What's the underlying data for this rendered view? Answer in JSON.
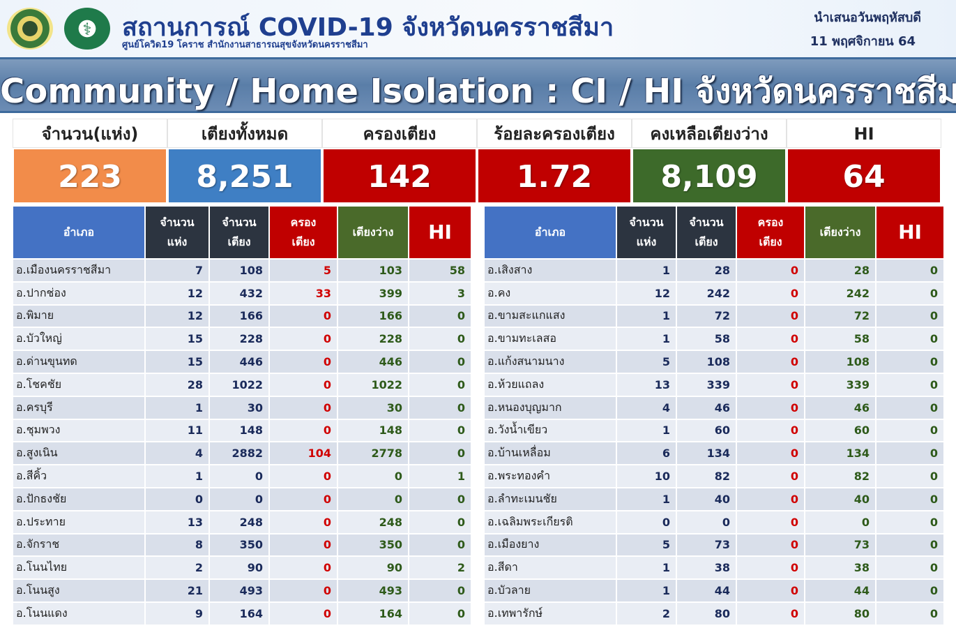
{
  "header": {
    "title": "สถานการณ์ COVID-19 จังหวัดนครราชสีมา",
    "subtitle": "ศูนย์โควิด19 โคราช สำนักงานสาธารณสุขจังหวัดนครราชสีมา",
    "date_line1": "นำเสนอวันพฤหัสบดี",
    "date_line2": "11 พฤศจิกายน 64",
    "logo2_symbol": "⚕"
  },
  "banner": "Community / Home Isolation : CI / HI จังหวัดนครราชสีมา",
  "summary": [
    {
      "label": "จำนวน(แห่ง)",
      "value": "223",
      "color": "#f28c4a"
    },
    {
      "label": "เตียงทั้งหมด",
      "value": "8,251",
      "color": "#3f7fc4"
    },
    {
      "label": "ครองเตียง",
      "value": "142",
      "color": "#c00000"
    },
    {
      "label": "ร้อยละครองเตียง",
      "value": "1.72",
      "color": "#c00000"
    },
    {
      "label": "คงเหลือเตียงว่าง",
      "value": "8,109",
      "color": "#3d6a2a"
    },
    {
      "label": "HI",
      "value": "64",
      "color": "#c00000"
    }
  ],
  "table_headers": {
    "district": "อำเภอ",
    "count_line1": "จำนวน",
    "count_line2": "แห่ง",
    "beds_line1": "จำนวน",
    "beds_line2": "เตียง",
    "occ_line1": "ครอง",
    "occ_line2": "เตียง",
    "available": "เตียงว่าง",
    "hi": "HI"
  },
  "left_rows": [
    [
      "อ.เมืองนครราชสีมา",
      "7",
      "108",
      "5",
      "103",
      "58"
    ],
    [
      "อ.ปากช่อง",
      "12",
      "432",
      "33",
      "399",
      "3"
    ],
    [
      "อ.พิมาย",
      "12",
      "166",
      "0",
      "166",
      "0"
    ],
    [
      "อ.บัวใหญ่",
      "15",
      "228",
      "0",
      "228",
      "0"
    ],
    [
      "อ.ด่านขุนทด",
      "15",
      "446",
      "0",
      "446",
      "0"
    ],
    [
      "อ.โชคชัย",
      "28",
      "1022",
      "0",
      "1022",
      "0"
    ],
    [
      "อ.ครบุรี",
      "1",
      "30",
      "0",
      "30",
      "0"
    ],
    [
      "อ.ชุมพวง",
      "11",
      "148",
      "0",
      "148",
      "0"
    ],
    [
      "อ.สูงเนิน",
      "4",
      "2882",
      "104",
      "2778",
      "0"
    ],
    [
      "อ.สีคิ้ว",
      "1",
      "0",
      "0",
      "0",
      "1"
    ],
    [
      "อ.ปักธงชัย",
      "0",
      "0",
      "0",
      "0",
      "0"
    ],
    [
      "อ.ประทาย",
      "13",
      "248",
      "0",
      "248",
      "0"
    ],
    [
      "อ.จักราช",
      "8",
      "350",
      "0",
      "350",
      "0"
    ],
    [
      "อ.โนนไทย",
      "2",
      "90",
      "0",
      "90",
      "2"
    ],
    [
      "อ.โนนสูง",
      "21",
      "493",
      "0",
      "493",
      "0"
    ],
    [
      "อ.โนนแดง",
      "9",
      "164",
      "0",
      "164",
      "0"
    ]
  ],
  "right_rows": [
    [
      "อ.เสิงสาง",
      "1",
      "28",
      "0",
      "28",
      "0"
    ],
    [
      "อ.คง",
      "12",
      "242",
      "0",
      "242",
      "0"
    ],
    [
      "อ.ขามสะแกแสง",
      "1",
      "72",
      "0",
      "72",
      "0"
    ],
    [
      "อ.ขามทะเลสอ",
      "1",
      "58",
      "0",
      "58",
      "0"
    ],
    [
      "อ.แก้งสนามนาง",
      "5",
      "108",
      "0",
      "108",
      "0"
    ],
    [
      "อ.ห้วยแถลง",
      "13",
      "339",
      "0",
      "339",
      "0"
    ],
    [
      "อ.หนองบุญมาก",
      "4",
      "46",
      "0",
      "46",
      "0"
    ],
    [
      "อ.วังน้ำเขียว",
      "1",
      "60",
      "0",
      "60",
      "0"
    ],
    [
      "อ.บ้านเหลื่อม",
      "6",
      "134",
      "0",
      "134",
      "0"
    ],
    [
      "อ.พระทองคำ",
      "10",
      "82",
      "0",
      "82",
      "0"
    ],
    [
      "อ.ลำทะเมนชัย",
      "1",
      "40",
      "0",
      "40",
      "0"
    ],
    [
      "อ.เฉลิมพระเกียรติ",
      "0",
      "0",
      "0",
      "0",
      "0"
    ],
    [
      "อ.เมืองยาง",
      "5",
      "73",
      "0",
      "73",
      "0"
    ],
    [
      "อ.สีดา",
      "1",
      "38",
      "0",
      "38",
      "0"
    ],
    [
      "อ.บัวลาย",
      "1",
      "44",
      "0",
      "44",
      "0"
    ],
    [
      "อ.เทพารักษ์",
      "2",
      "80",
      "0",
      "80",
      "0"
    ]
  ]
}
